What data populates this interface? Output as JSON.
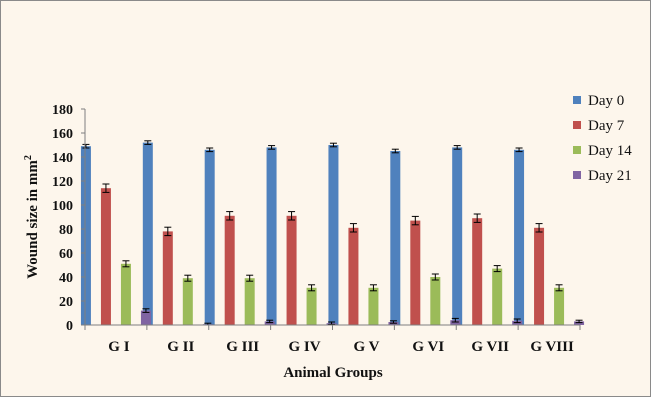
{
  "chart_data": {
    "type": "bar",
    "title": "",
    "xlabel": "Animal Groups",
    "ylabel": "Wound size in mm",
    "ylabel_superscript": "2",
    "ylim": [
      0,
      180
    ],
    "yticks": [
      "0",
      "20",
      "40",
      "60",
      "80",
      "100",
      "120",
      "140",
      "160",
      "180"
    ],
    "categories": [
      "G I",
      "G II",
      "G III",
      "G IV",
      "G V",
      "G VI",
      "G VII",
      "G VIII"
    ],
    "series": [
      {
        "name": "Day 0",
        "color": "#4f81bd",
        "values": [
          149,
          152,
          146,
          148,
          150,
          145,
          148,
          146
        ],
        "errors": [
          1.5,
          1.5,
          1.5,
          1.5,
          1.5,
          1.5,
          1.5,
          1.5
        ]
      },
      {
        "name": "Day 7",
        "color": "#c0504d",
        "values": [
          114,
          78,
          91,
          91,
          81,
          87,
          89,
          81
        ],
        "errors": [
          3.5,
          3.5,
          3.5,
          3.5,
          3.5,
          3.5,
          3.5,
          3.5
        ]
      },
      {
        "name": "Day 14",
        "color": "#9bbb59",
        "values": [
          51,
          39,
          39,
          31,
          31,
          40,
          47,
          31
        ],
        "errors": [
          2.5,
          2.5,
          2.5,
          2.5,
          2.5,
          2.5,
          2.5,
          2.5
        ]
      },
      {
        "name": "Day 21",
        "color": "#8064a2",
        "values": [
          12,
          0.5,
          3,
          1.5,
          2.5,
          4,
          3.5,
          3
        ],
        "errors": [
          1.5,
          1,
          1,
          1,
          1,
          1.5,
          1.5,
          1
        ]
      }
    ],
    "legend": "right",
    "grid": false,
    "error_bars": true
  }
}
